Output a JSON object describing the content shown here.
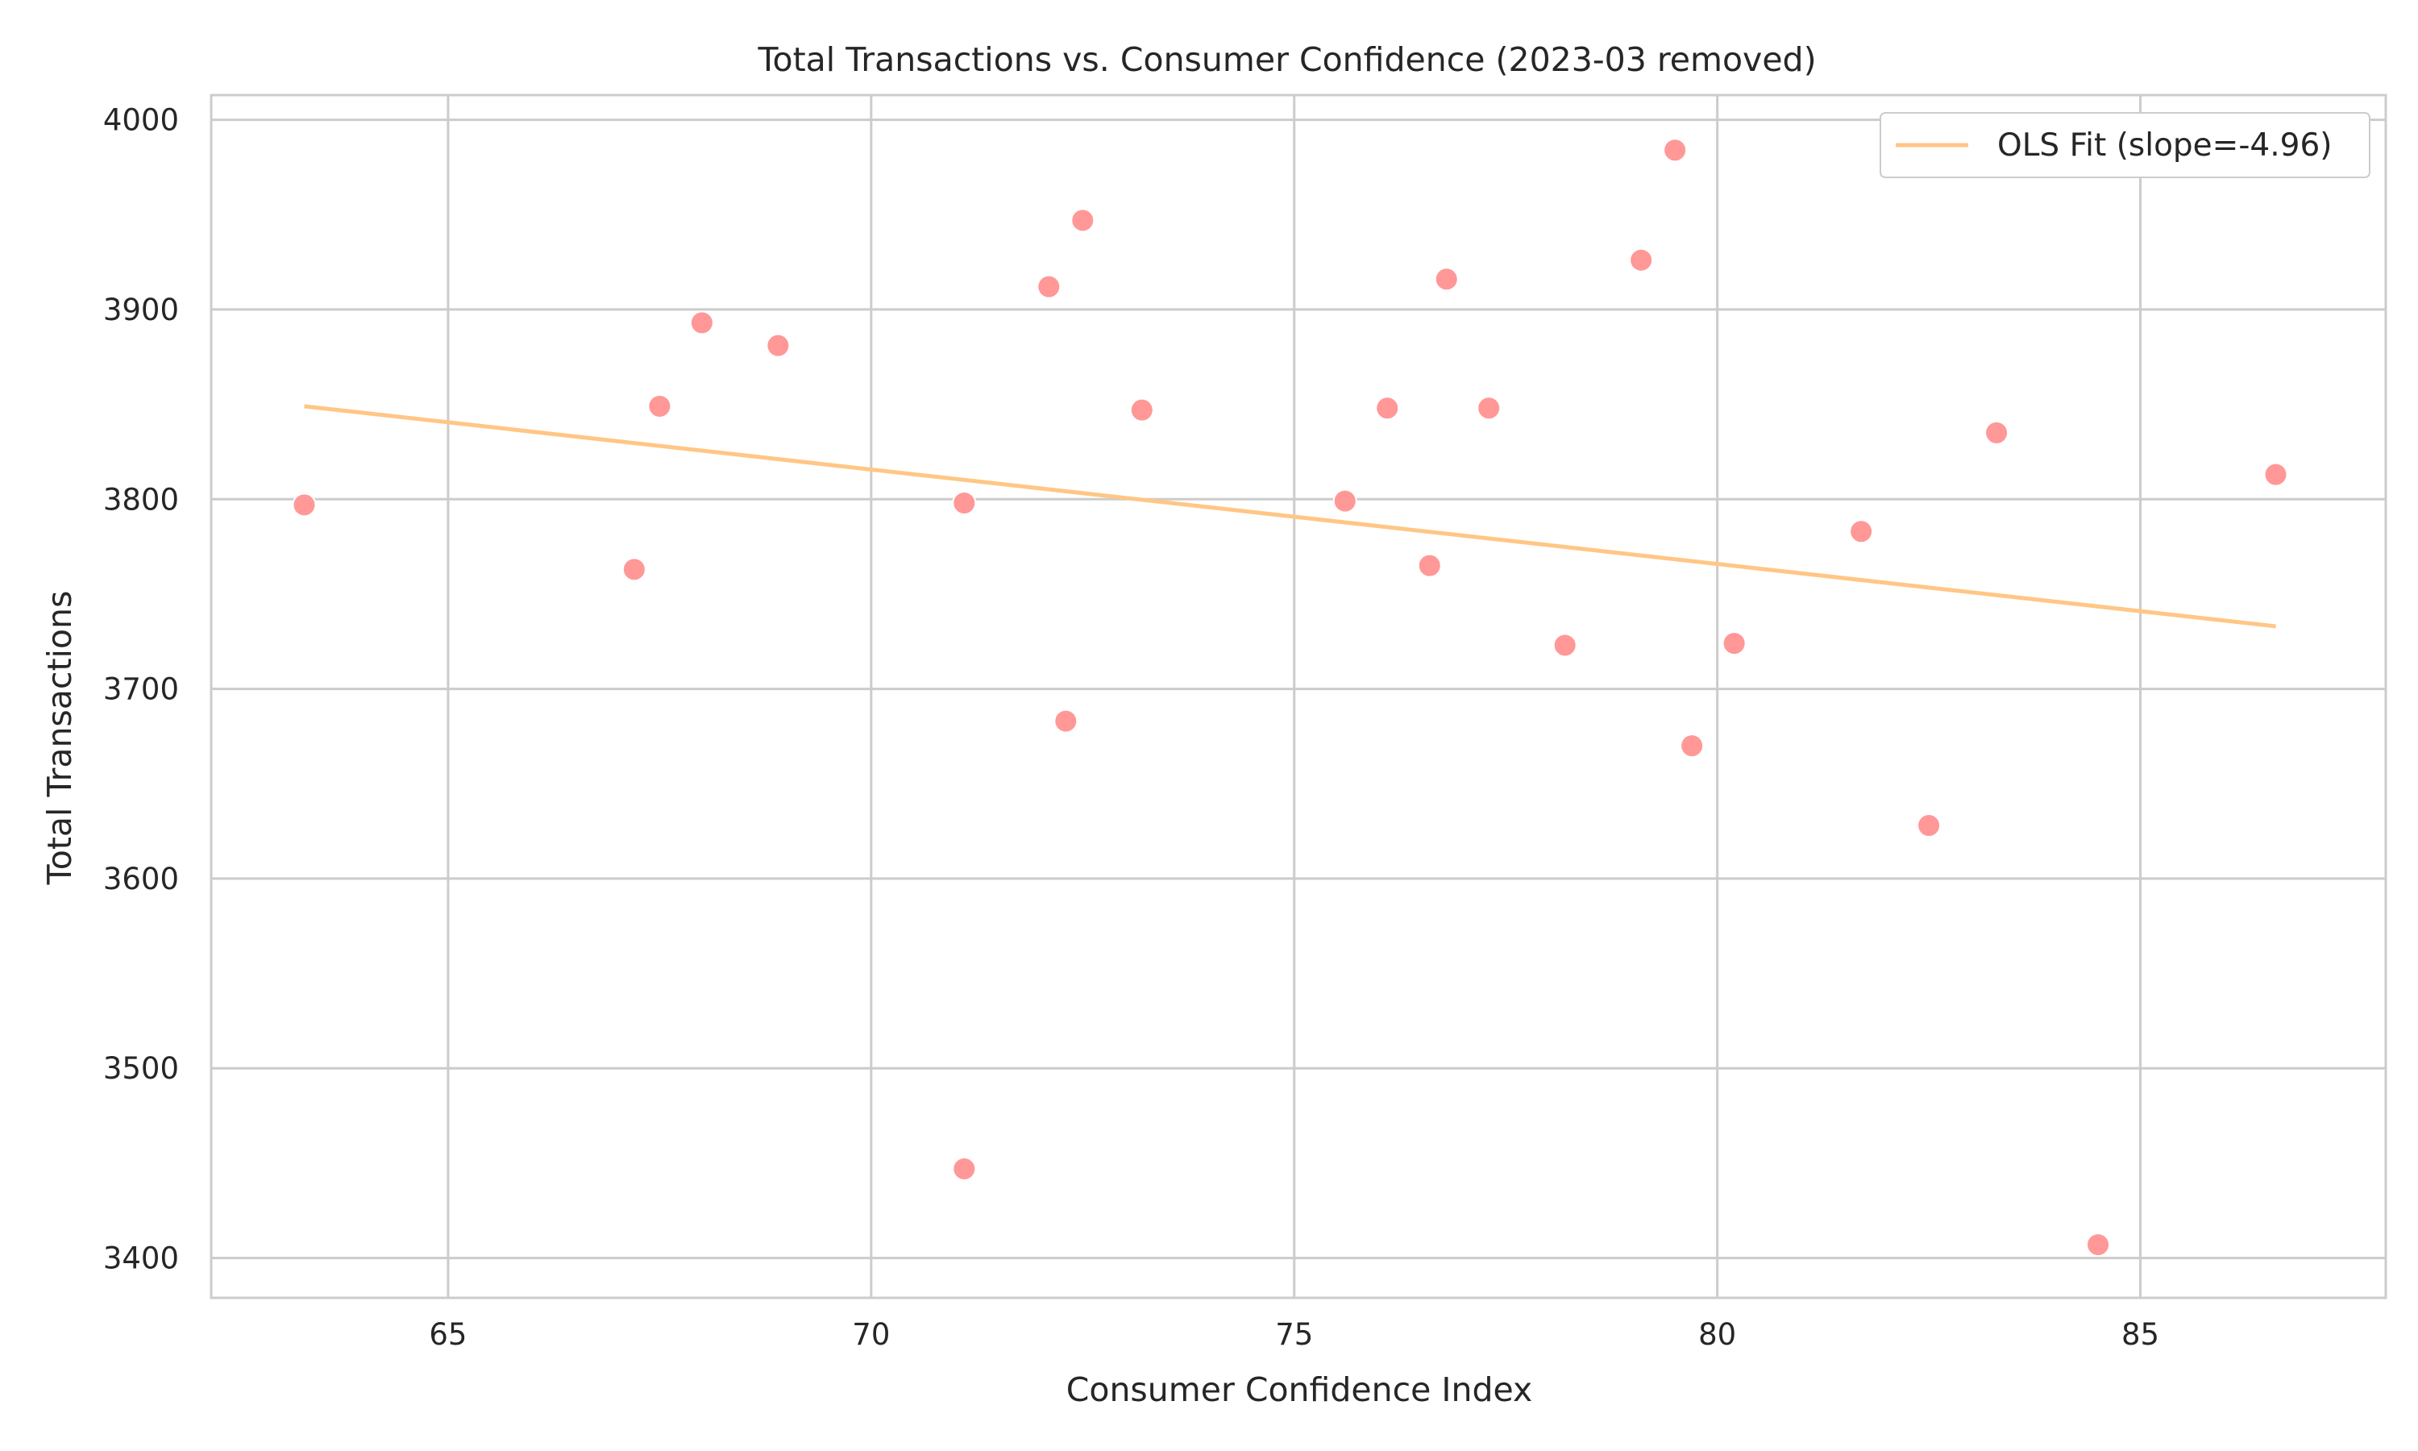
{
  "chart_data": {
    "type": "scatter",
    "title": "Total Transactions vs. Consumer Confidence (2023-03 removed)",
    "xlabel": "Consumer Confidence Index",
    "ylabel": "Total Transactions",
    "xlim": [
      62.2,
      87.9
    ],
    "ylim": [
      3379,
      4013
    ],
    "xticks": [
      65,
      70,
      75,
      80,
      85
    ],
    "yticks": [
      3400,
      3500,
      3600,
      3700,
      3800,
      3900,
      4000
    ],
    "grid": true,
    "legend_position": "top-right",
    "marker_color": "#ff9896",
    "line_color": "#ffc685",
    "points": [
      {
        "x": 63.3,
        "y": 3797
      },
      {
        "x": 67.2,
        "y": 3763
      },
      {
        "x": 67.5,
        "y": 3849
      },
      {
        "x": 68.0,
        "y": 3893
      },
      {
        "x": 68.9,
        "y": 3881
      },
      {
        "x": 71.1,
        "y": 3798
      },
      {
        "x": 71.1,
        "y": 3447
      },
      {
        "x": 72.1,
        "y": 3912
      },
      {
        "x": 72.3,
        "y": 3683
      },
      {
        "x": 72.5,
        "y": 3947
      },
      {
        "x": 73.2,
        "y": 3847
      },
      {
        "x": 75.6,
        "y": 3799
      },
      {
        "x": 76.1,
        "y": 3848
      },
      {
        "x": 76.6,
        "y": 3765
      },
      {
        "x": 76.8,
        "y": 3916
      },
      {
        "x": 77.3,
        "y": 3848
      },
      {
        "x": 78.2,
        "y": 3723
      },
      {
        "x": 79.1,
        "y": 3926
      },
      {
        "x": 79.5,
        "y": 3984
      },
      {
        "x": 79.7,
        "y": 3670
      },
      {
        "x": 80.2,
        "y": 3724
      },
      {
        "x": 81.7,
        "y": 3783
      },
      {
        "x": 82.5,
        "y": 3628
      },
      {
        "x": 83.3,
        "y": 3835
      },
      {
        "x": 84.5,
        "y": 3407
      },
      {
        "x": 86.6,
        "y": 3813
      }
    ],
    "fit_line": {
      "name": "OLS Fit (slope=-4.96)",
      "x": [
        63.3,
        86.6
      ],
      "y": [
        3849,
        3733
      ]
    }
  }
}
